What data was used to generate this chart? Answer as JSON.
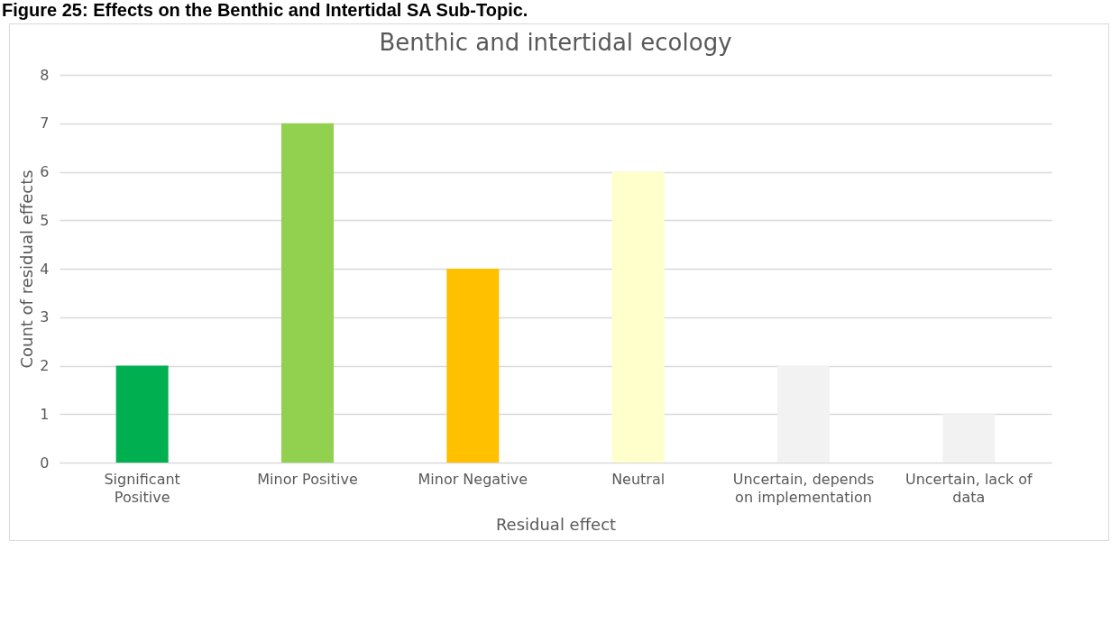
{
  "chart_data": {
    "type": "bar",
    "title": "Benthic and intertidal ecology",
    "xlabel": "Residual effect",
    "ylabel": "Count of residual effects",
    "annotations": [
      "Figure 25: Effects on the Benthic and Intertidal SA Sub-Topic."
    ],
    "categories": [
      "Significant Positive",
      "Minor Positive",
      "Minor Negative",
      "Neutral",
      "Uncertain, depends on implementation",
      "Uncertain, lack of data"
    ],
    "values": [
      2,
      7,
      4,
      6,
      2,
      1
    ],
    "colors": [
      "#00b050",
      "#92d050",
      "#ffc000",
      "#ffffcc",
      "#f2f2f2",
      "#f2f2f2"
    ],
    "ylim": [
      0,
      8
    ],
    "yticks": [
      0,
      1,
      2,
      3,
      4,
      5,
      6,
      7,
      8
    ],
    "grid": "y"
  }
}
